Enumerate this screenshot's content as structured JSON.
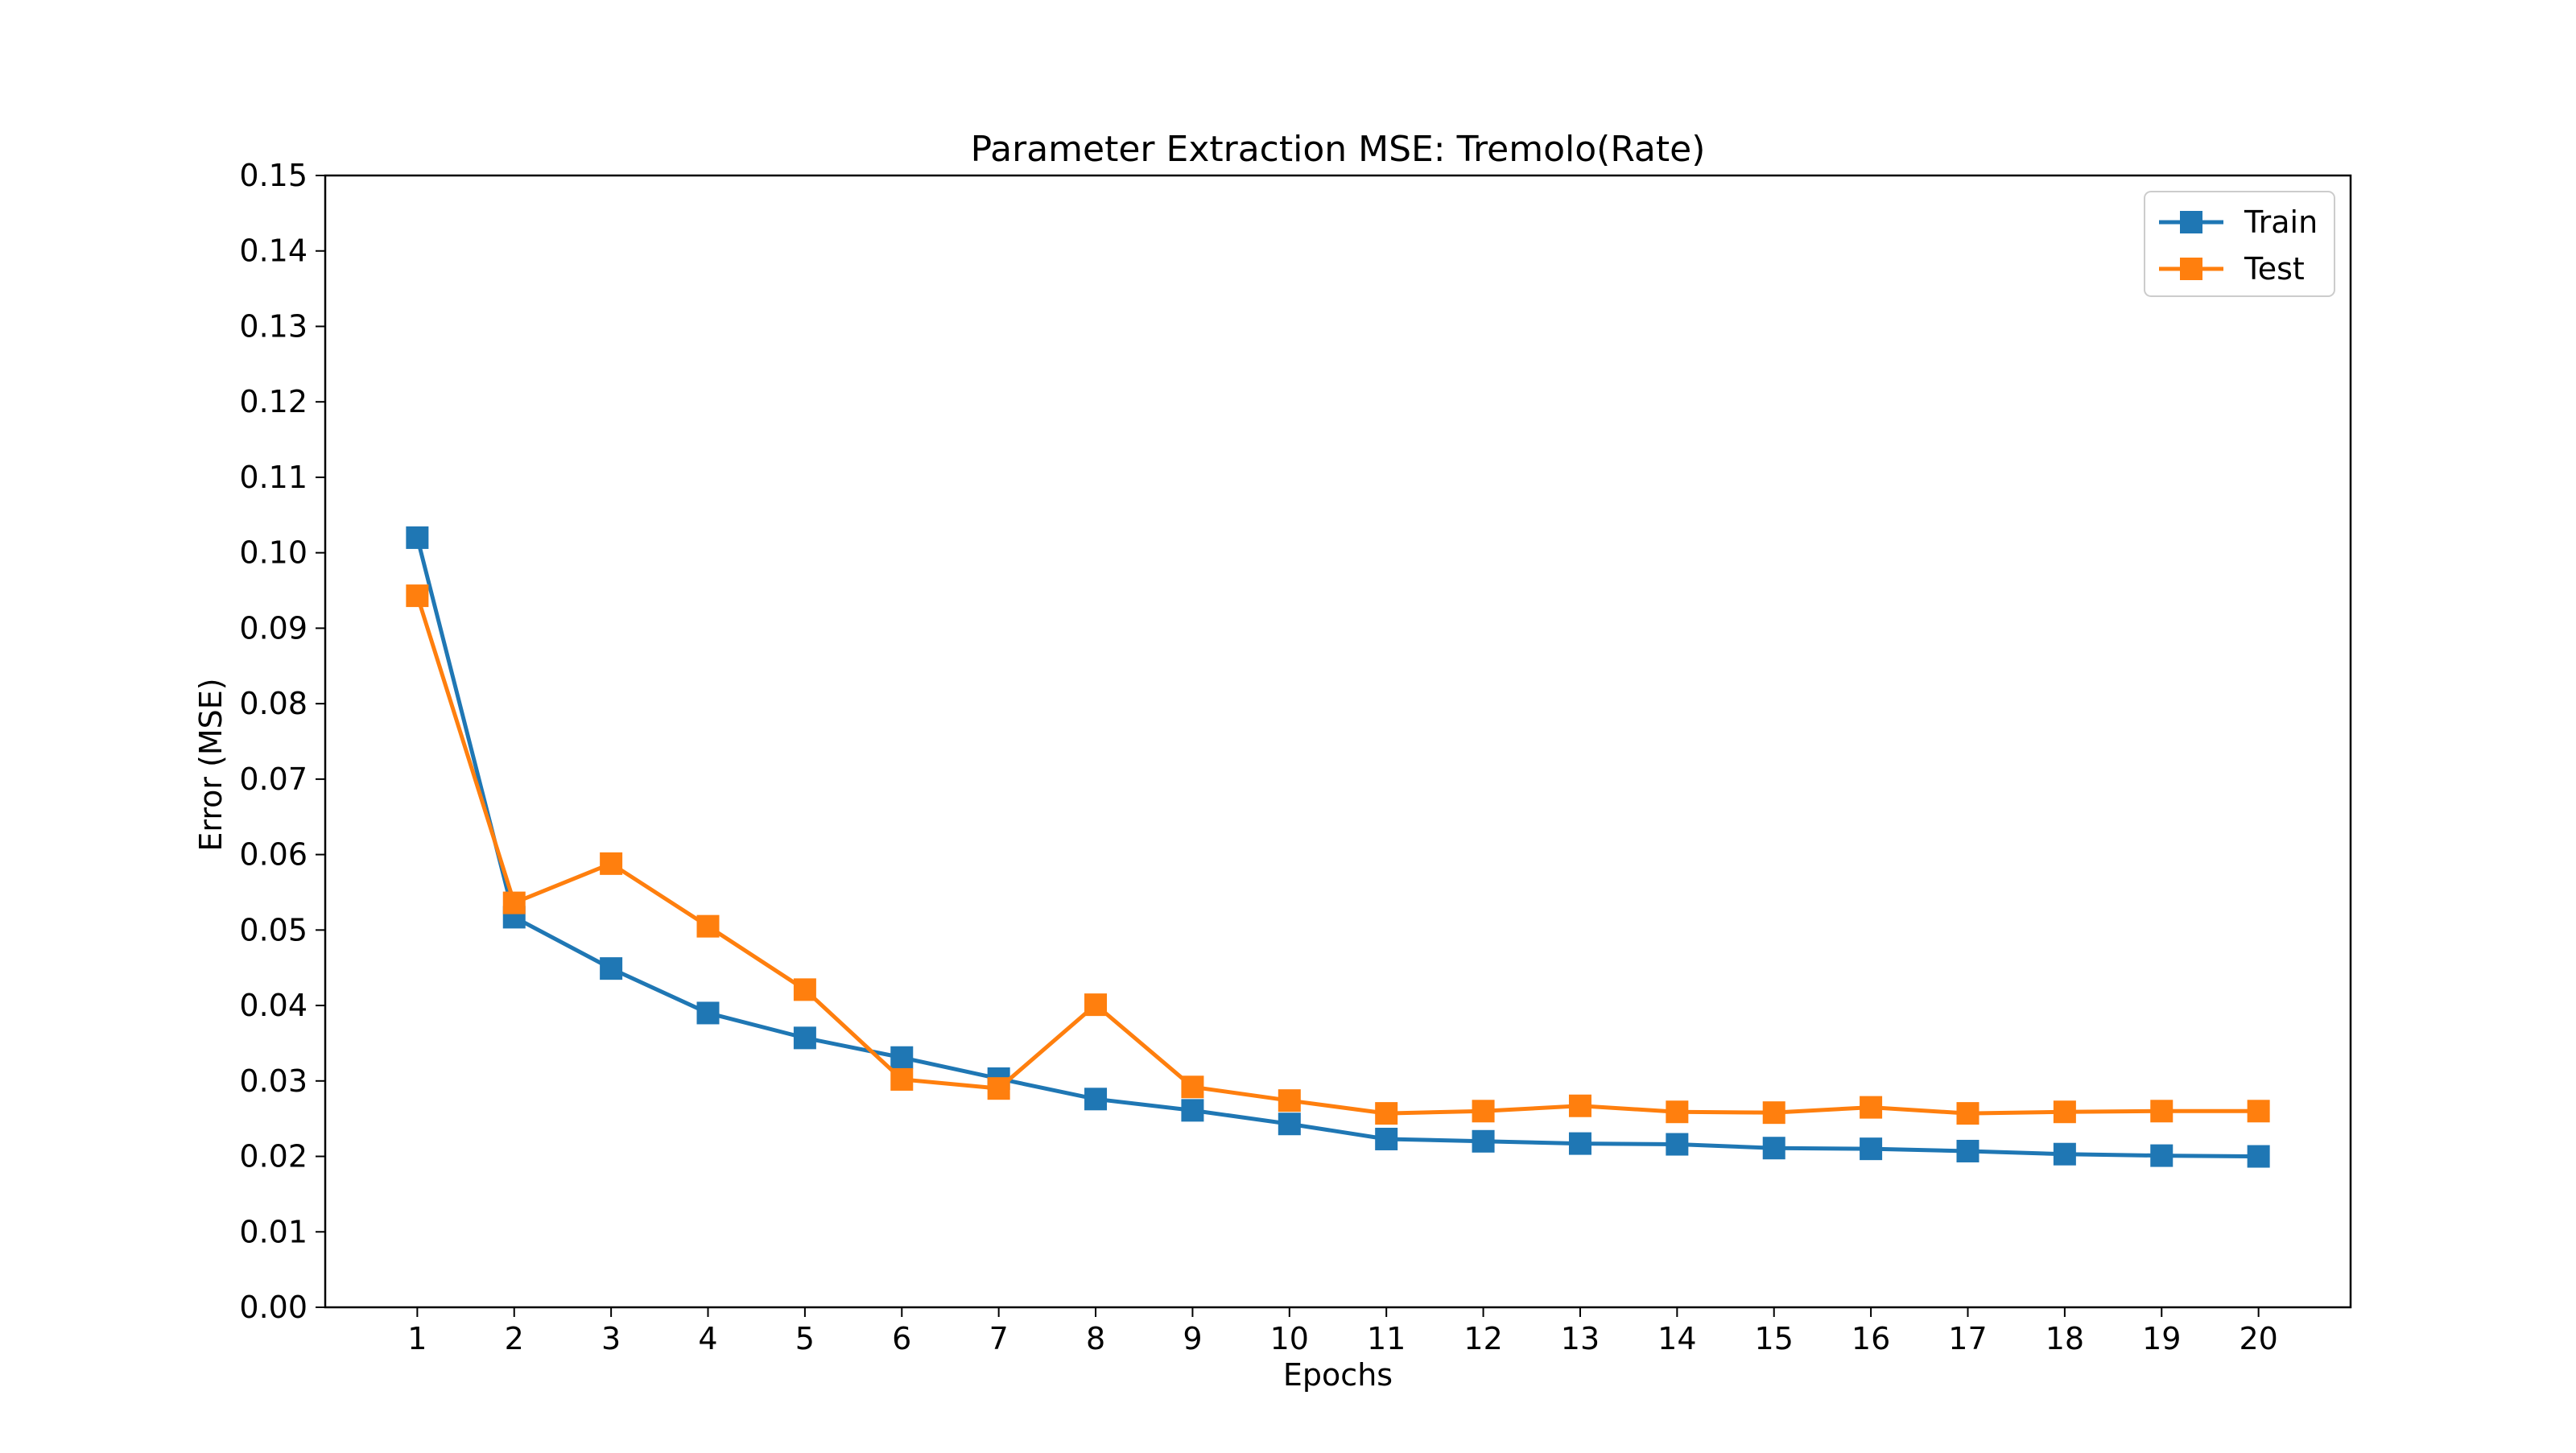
{
  "chart_data": {
    "type": "line",
    "title": "Parameter Extraction MSE: Tremolo(Rate)",
    "xlabel": "Epochs",
    "ylabel": "Error (MSE)",
    "x": [
      1,
      2,
      3,
      4,
      5,
      6,
      7,
      8,
      9,
      10,
      11,
      12,
      13,
      14,
      15,
      16,
      17,
      18,
      19,
      20
    ],
    "xticks": [
      "1",
      "2",
      "3",
      "4",
      "5",
      "6",
      "7",
      "8",
      "9",
      "10",
      "11",
      "12",
      "13",
      "14",
      "15",
      "16",
      "17",
      "18",
      "19",
      "20"
    ],
    "xlim": [
      0.05,
      20.95
    ],
    "ylim": [
      0,
      0.15
    ],
    "yticks": [
      "0.00",
      "0.01",
      "0.02",
      "0.03",
      "0.04",
      "0.05",
      "0.06",
      "0.07",
      "0.08",
      "0.09",
      "0.10",
      "0.11",
      "0.12",
      "0.13",
      "0.14",
      "0.15"
    ],
    "grid": false,
    "legend": "top-right",
    "series": [
      {
        "name": "Train",
        "color": "#1f77b4",
        "marker": "square",
        "values": [
          0.102,
          0.0517,
          0.0449,
          0.039,
          0.0357,
          0.0331,
          0.0303,
          0.0276,
          0.0261,
          0.0243,
          0.0223,
          0.022,
          0.0217,
          0.0216,
          0.0211,
          0.021,
          0.0207,
          0.0203,
          0.0201,
          0.02
        ]
      },
      {
        "name": "Test",
        "color": "#ff7f0e",
        "marker": "square",
        "values": [
          0.0943,
          0.0536,
          0.0588,
          0.0505,
          0.0421,
          0.0302,
          0.029,
          0.0401,
          0.0292,
          0.0274,
          0.0257,
          0.026,
          0.0267,
          0.0259,
          0.0258,
          0.0265,
          0.0257,
          0.0259,
          0.026,
          0.026
        ]
      }
    ]
  }
}
